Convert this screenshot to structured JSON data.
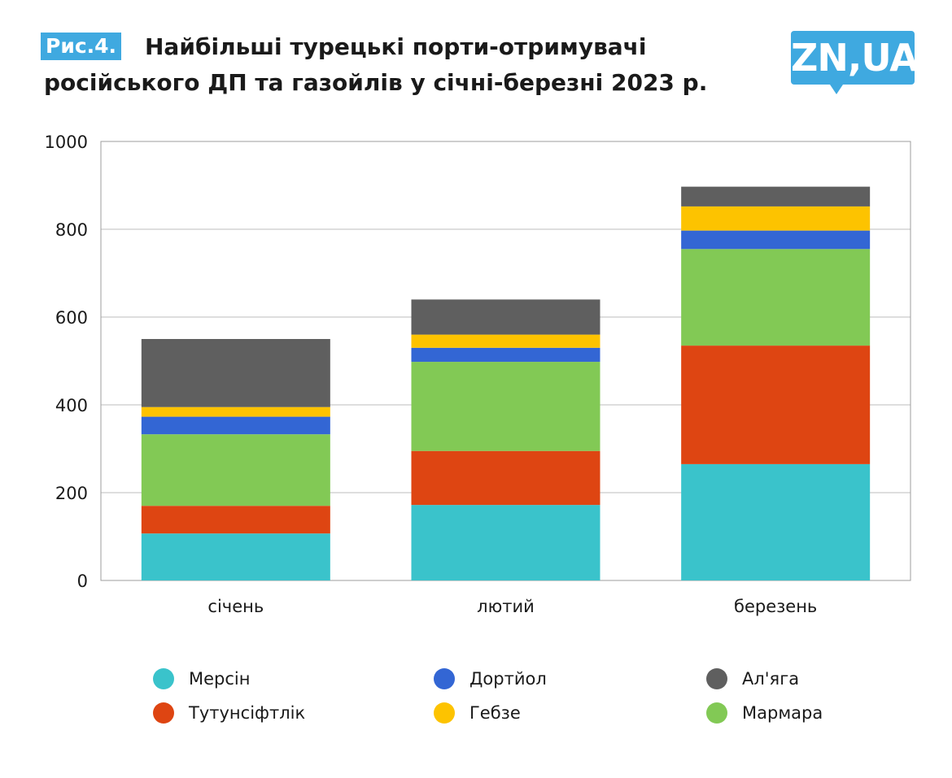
{
  "header": {
    "fig_label": "Рис.4.",
    "title_line1": "Найбільші турецькі порти-отримувачі",
    "title_line2": "російського ДП та газойлів у січні-березні 2023 р.",
    "logo": "ZN,UA"
  },
  "chart_data": {
    "type": "bar",
    "stacked": true,
    "title": "Найбільші турецькі порти-отримувачі російського ДП та газойлів у січні-березні 2023 р.",
    "categories": [
      "січень",
      "лютий",
      "березень"
    ],
    "ylim": [
      0,
      1000
    ],
    "yticks": [
      0,
      200,
      400,
      600,
      800,
      1000
    ],
    "grid": true,
    "legend_placement": "bottom",
    "series": [
      {
        "name": "Мерсін",
        "color": "#3ac3cb",
        "values": [
          107,
          172,
          265
        ]
      },
      {
        "name": "Тутунсіфтлік",
        "color": "#de4512",
        "values": [
          63,
          123,
          270
        ]
      },
      {
        "name": "Мармара",
        "color": "#82c955",
        "values": [
          163,
          203,
          220
        ]
      },
      {
        "name": "Дортйол",
        "color": "#3366d4",
        "values": [
          40,
          32,
          42
        ]
      },
      {
        "name": "Гебзе",
        "color": "#fdc300",
        "values": [
          22,
          30,
          55
        ]
      },
      {
        "name": "Ал'яга",
        "color": "#5f5f5f",
        "values": [
          155,
          80,
          45
        ]
      }
    ]
  },
  "legend": {
    "items": [
      {
        "label": "Мерсін",
        "color": "#3ac3cb"
      },
      {
        "label": "Дортйол",
        "color": "#3366d4"
      },
      {
        "label": "Ал'яга",
        "color": "#5f5f5f"
      },
      {
        "label": "Тутунсіфтлік",
        "color": "#de4512"
      },
      {
        "label": "Гебзе",
        "color": "#fdc300"
      },
      {
        "label": "Мармара",
        "color": "#82c955"
      }
    ]
  }
}
